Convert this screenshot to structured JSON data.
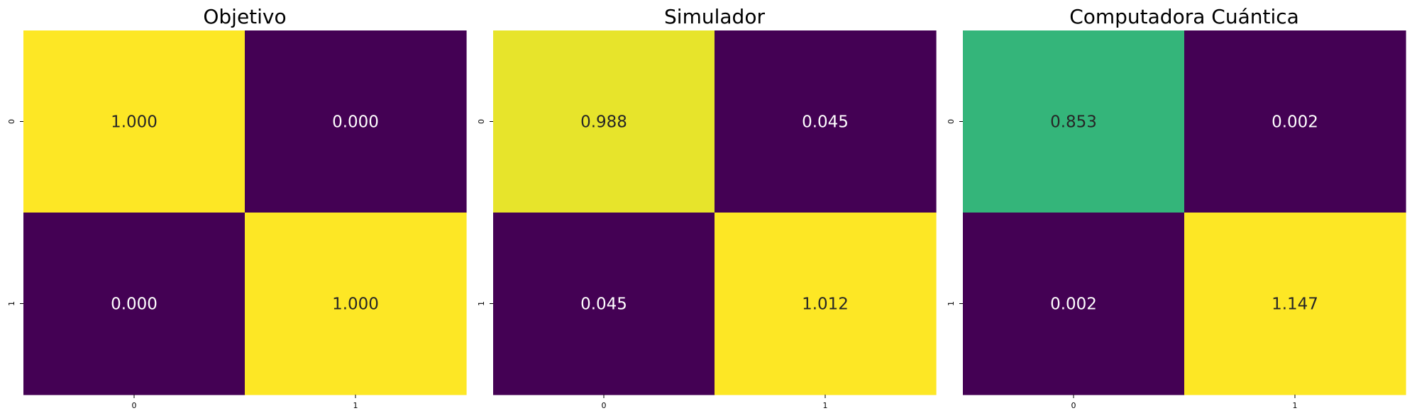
{
  "chart_data": [
    {
      "type": "heatmap",
      "title": "Objetivo",
      "x_ticks": [
        "0",
        "1"
      ],
      "y_ticks": [
        "0",
        "1"
      ],
      "values": [
        [
          1.0,
          0.0
        ],
        [
          0.0,
          1.0
        ]
      ],
      "labels": [
        [
          "1.000",
          "0.000"
        ],
        [
          "0.000",
          "1.000"
        ]
      ],
      "colormap": "viridis",
      "colorbar": false
    },
    {
      "type": "heatmap",
      "title": "Simulador",
      "x_ticks": [
        "0",
        "1"
      ],
      "y_ticks": [
        "0",
        "1"
      ],
      "values": [
        [
          0.988,
          0.045
        ],
        [
          0.045,
          1.012
        ]
      ],
      "labels": [
        [
          "0.988",
          "0.045"
        ],
        [
          "0.045",
          "1.012"
        ]
      ],
      "colormap": "viridis",
      "colorbar": false
    },
    {
      "type": "heatmap",
      "title": "Computadora Cuántica",
      "x_ticks": [
        "0",
        "1"
      ],
      "y_ticks": [
        "0",
        "1"
      ],
      "values": [
        [
          0.853,
          0.002
        ],
        [
          0.002,
          1.147
        ]
      ],
      "labels": [
        [
          "0.853",
          "0.002"
        ],
        [
          "0.002",
          "1.147"
        ]
      ],
      "colormap": "viridis",
      "colorbar": false
    }
  ],
  "colors": {
    "viridis_low": "#440154",
    "viridis_high": "#fde725",
    "text_dark": "#262626",
    "text_light": "#ffffff"
  }
}
